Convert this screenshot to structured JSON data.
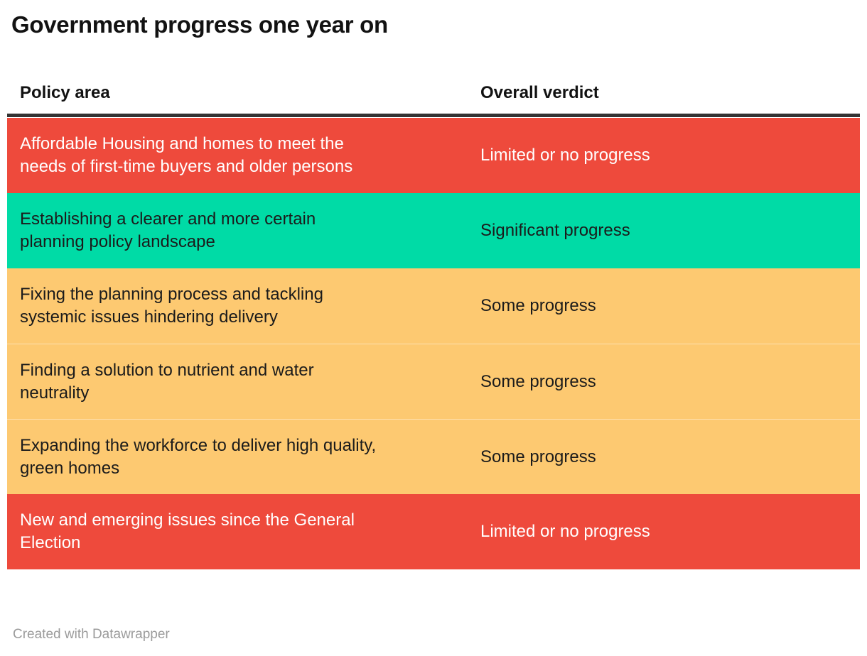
{
  "title": "Government progress one year on",
  "table": {
    "columns": [
      "Policy area",
      "Overall verdict"
    ],
    "rows": [
      {
        "policy": "Affordable Housing and homes to meet the\nneeds of first-time buyers and older persons",
        "verdict": "Limited or no progress",
        "status": "red"
      },
      {
        "policy": "Establishing a clearer and more certain\nplanning policy landscape",
        "verdict": "Significant progress",
        "status": "green"
      },
      {
        "policy": "Fixing the planning process and tackling\nsystemic issues hindering delivery",
        "verdict": "Some progress",
        "status": "orange"
      },
      {
        "policy": "Finding a solution to nutrient and water\nneutrality",
        "verdict": "Some progress",
        "status": "orange"
      },
      {
        "policy": "Expanding the workforce to deliver high quality,\ngreen homes",
        "verdict": "Some progress",
        "status": "orange"
      },
      {
        "policy": "New and emerging issues since the General\nElection",
        "verdict": "Limited or no progress",
        "status": "red"
      }
    ]
  },
  "footer": {
    "attribution": "Created with Datawrapper"
  },
  "colors": {
    "red": "#EE4A3C",
    "green": "#00DBA6",
    "orange": "#FDC971",
    "text_dark": "#1b1b1b",
    "text_light": "#ffffff",
    "header_rule": "#333333",
    "footer_text": "#9b9b9b"
  },
  "chart_data": {
    "type": "table",
    "title": "Government progress one year on",
    "columns": [
      "Policy area",
      "Overall verdict"
    ],
    "rows": [
      [
        "Affordable Housing and homes to meet the needs of first-time buyers and older persons",
        "Limited or no progress"
      ],
      [
        "Establishing a clearer and more certain planning policy landscape",
        "Significant progress"
      ],
      [
        "Fixing the planning process and tackling systemic issues hindering delivery",
        "Some progress"
      ],
      [
        "Finding a solution to nutrient and water neutrality",
        "Some progress"
      ],
      [
        "Expanding the workforce to deliver high quality, green homes",
        "Some progress"
      ],
      [
        "New and emerging issues since the General Election",
        "Limited or no progress"
      ]
    ],
    "row_colors": [
      "#EE4A3C",
      "#00DBA6",
      "#FDC971",
      "#FDC971",
      "#FDC971",
      "#EE4A3C"
    ],
    "legend_mapping": {
      "Limited or no progress": "#EE4A3C",
      "Some progress": "#FDC971",
      "Significant progress": "#00DBA6"
    }
  }
}
